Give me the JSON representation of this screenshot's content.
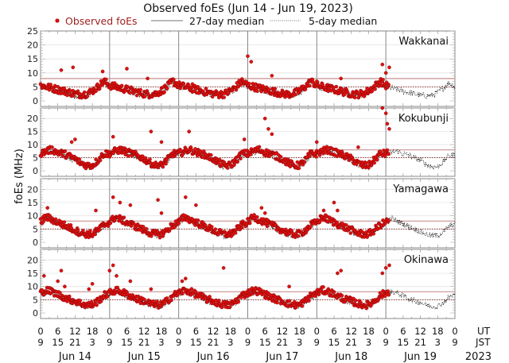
{
  "chart_data": {
    "type": "scatter",
    "title": "Observed foEs (Jun 14 - Jun 19, 2023)",
    "ylabel": "foEs (MHz)",
    "xlabel_rows": [
      "UT",
      "JST"
    ],
    "year_label": "2023",
    "ylim": [
      0,
      25
    ],
    "yticks_first_panel": [
      0,
      5,
      10,
      15,
      20,
      25
    ],
    "yticks_other_panels": [
      0,
      5,
      10,
      15,
      20
    ],
    "legend": {
      "placement": "top",
      "entries": [
        {
          "label": "Observed foEs",
          "style": "red-dot",
          "color": "#cc1111"
        },
        {
          "label": "27-day median",
          "style": "solid-line",
          "color": "#555555"
        },
        {
          "label": "5-day median",
          "style": "dotted-line",
          "color": "#555555"
        }
      ]
    },
    "days": [
      "Jun 14",
      "Jun 15",
      "Jun 16",
      "Jun 17",
      "Jun 18",
      "Jun 19"
    ],
    "ut_ticks": [
      "0",
      "6",
      "12",
      "18"
    ],
    "jst_ticks": [
      "9",
      "15",
      "21",
      "3"
    ],
    "final_ut_tick": "0",
    "final_jst_tick": "9",
    "observed_end_day_fraction": 5.05,
    "stations": [
      {
        "name": "Wakkanai",
        "median27": 8,
        "median5": 5,
        "daily_profile": [
          5,
          4.5,
          4,
          3.5,
          3,
          2.5,
          2,
          1.8,
          2,
          3,
          4.5,
          6.5
        ],
        "spikes": [
          [
            0.3,
            11
          ],
          [
            0.47,
            12
          ],
          [
            0.9,
            10.5
          ],
          [
            1.25,
            11.5
          ],
          [
            1.55,
            8
          ],
          [
            2.2,
            6
          ],
          [
            3.0,
            16
          ],
          [
            3.05,
            14
          ],
          [
            3.35,
            9
          ],
          [
            4.0,
            7
          ],
          [
            4.35,
            8
          ],
          [
            4.95,
            13
          ],
          [
            5.0,
            10
          ],
          [
            5.05,
            12
          ]
        ]
      },
      {
        "name": "Kokubunji",
        "median27": 8,
        "median5": 5,
        "daily_profile": [
          6,
          7,
          7.5,
          6.5,
          6,
          5,
          4,
          2.5,
          1.5,
          1.5,
          3.5,
          6
        ],
        "spikes": [
          [
            0.45,
            11
          ],
          [
            0.5,
            12
          ],
          [
            1.05,
            13
          ],
          [
            1.6,
            15
          ],
          [
            1.75,
            11
          ],
          [
            2.15,
            15
          ],
          [
            2.95,
            12
          ],
          [
            3.25,
            20
          ],
          [
            3.3,
            16
          ],
          [
            3.35,
            14
          ],
          [
            4.0,
            11
          ],
          [
            4.6,
            9
          ],
          [
            4.95,
            24
          ],
          [
            5.0,
            22
          ],
          [
            5.02,
            18
          ],
          [
            5.05,
            16
          ]
        ]
      },
      {
        "name": "Yamagawa",
        "median27": 8,
        "median5": 5,
        "daily_profile": [
          7,
          9,
          8,
          7,
          6,
          5,
          4,
          3,
          2.5,
          2.5,
          4,
          6
        ],
        "spikes": [
          [
            0.05,
            10
          ],
          [
            0.1,
            13
          ],
          [
            0.8,
            12
          ],
          [
            1.05,
            17
          ],
          [
            1.15,
            15
          ],
          [
            1.3,
            14
          ],
          [
            1.7,
            16
          ],
          [
            1.75,
            11
          ],
          [
            2.1,
            17
          ],
          [
            2.25,
            14
          ],
          [
            3.2,
            13
          ],
          [
            3.25,
            11
          ],
          [
            4.1,
            12
          ],
          [
            4.25,
            15
          ],
          [
            4.3,
            12
          ]
        ]
      },
      {
        "name": "Okinawa",
        "median27": 8,
        "median5": 5,
        "daily_profile": [
          7,
          8,
          7.5,
          6.5,
          5.5,
          4.5,
          4,
          3,
          2.5,
          2.5,
          4,
          6
        ],
        "spikes": [
          [
            0.05,
            14
          ],
          [
            0.25,
            12
          ],
          [
            0.3,
            16
          ],
          [
            0.35,
            10
          ],
          [
            0.7,
            9
          ],
          [
            0.75,
            11
          ],
          [
            1.0,
            16
          ],
          [
            1.05,
            18
          ],
          [
            1.1,
            14
          ],
          [
            1.3,
            12
          ],
          [
            1.6,
            9
          ],
          [
            2.05,
            12
          ],
          [
            2.1,
            13
          ],
          [
            2.65,
            17
          ],
          [
            3.1,
            9
          ],
          [
            3.6,
            10
          ],
          [
            4.3,
            15
          ],
          [
            4.35,
            16
          ],
          [
            4.95,
            15
          ],
          [
            5.0,
            17
          ],
          [
            5.05,
            18
          ]
        ]
      }
    ]
  }
}
